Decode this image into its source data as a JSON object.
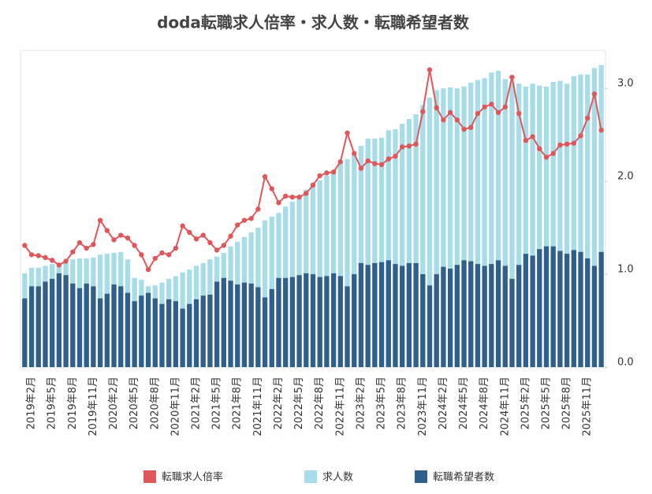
{
  "chart_data": {
    "type": "bar-line",
    "title": "doda転職求人倍率・求人数・転職希望者数",
    "categories": [
      null,
      "2019年2月",
      null,
      null,
      "2019年5月",
      null,
      null,
      "2019年8月",
      null,
      null,
      "2019年11月",
      null,
      null,
      "2020年2月",
      null,
      null,
      "2020年5月",
      null,
      null,
      "2020年8月",
      null,
      null,
      "2020年11月",
      null,
      null,
      "2021年2月",
      null,
      null,
      "2021年5月",
      null,
      null,
      "2021年8月",
      null,
      null,
      "2021年11月",
      null,
      null,
      "2022年2月",
      null,
      null,
      "2022年5月",
      null,
      null,
      "2022年8月",
      null,
      null,
      "2022年11月",
      null,
      null,
      "2023年2月",
      null,
      null,
      "2023年5月",
      null,
      null,
      "2023年8月",
      null,
      null,
      "2023年11月",
      null,
      null,
      "2024年2月",
      null,
      null,
      "2024年5月",
      null,
      null,
      "2024年8月",
      null,
      null,
      "2024年11月",
      null,
      null,
      "2025年2月",
      null,
      null,
      "2025年5月",
      null,
      null,
      "2025年8月",
      null,
      null,
      "2025年11月",
      null,
      null
    ],
    "series": [
      {
        "name": "転職求人倍率",
        "color": "#e0575b",
        "axis": "y2",
        "kind": "line",
        "values": [
          1.31,
          1.21,
          1.2,
          1.18,
          1.15,
          1.1,
          1.14,
          1.24,
          1.34,
          1.28,
          1.32,
          1.58,
          1.47,
          1.37,
          1.42,
          1.39,
          1.31,
          1.21,
          1.05,
          1.17,
          1.23,
          1.21,
          1.28,
          1.52,
          1.45,
          1.38,
          1.42,
          1.34,
          1.26,
          1.31,
          1.41,
          1.53,
          1.58,
          1.6,
          1.7,
          2.05,
          1.92,
          1.77,
          1.84,
          1.83,
          1.83,
          1.87,
          1.96,
          2.06,
          2.09,
          2.1,
          2.21,
          2.52,
          2.3,
          2.14,
          2.22,
          2.19,
          2.18,
          2.24,
          2.27,
          2.37,
          2.38,
          2.4,
          2.75,
          3.2,
          2.79,
          2.66,
          2.74,
          2.66,
          2.56,
          2.58,
          2.73,
          2.8,
          2.83,
          2.74,
          2.8,
          3.12,
          2.73,
          2.44,
          2.48,
          2.35,
          2.26,
          2.3,
          2.39,
          2.4,
          2.41,
          2.49,
          2.68,
          2.94,
          2.55
        ]
      },
      {
        "name": "求人数",
        "color": "#a6dde9",
        "kind": "bar",
        "values": [
          1.01,
          1.07,
          1.07,
          1.09,
          1.11,
          1.12,
          1.13,
          1.16,
          1.17,
          1.17,
          1.18,
          1.21,
          1.22,
          1.23,
          1.24,
          1.16,
          0.96,
          0.94,
          0.87,
          0.88,
          0.91,
          0.95,
          0.98,
          1.02,
          1.05,
          1.09,
          1.12,
          1.16,
          1.19,
          1.23,
          1.3,
          1.35,
          1.4,
          1.45,
          1.5,
          1.58,
          1.62,
          1.66,
          1.73,
          1.78,
          1.84,
          1.91,
          1.96,
          2.01,
          2.06,
          2.12,
          2.19,
          2.24,
          2.3,
          2.38,
          2.46,
          2.46,
          2.47,
          2.55,
          2.56,
          2.62,
          2.67,
          2.72,
          2.82,
          2.9,
          2.98,
          3.0,
          3.01,
          3.0,
          3.02,
          3.06,
          3.09,
          3.11,
          3.17,
          3.19,
          3.1,
          3.07,
          3.05,
          3.02,
          3.05,
          3.03,
          3.02,
          3.07,
          3.08,
          3.05,
          3.13,
          3.15,
          3.15,
          3.22,
          3.25
        ]
      },
      {
        "name": "転職希望者数",
        "color": "#2f5f8a",
        "kind": "bar",
        "values": [
          0.74,
          0.87,
          0.87,
          0.92,
          0.95,
          1.01,
          0.99,
          0.9,
          0.85,
          0.9,
          0.87,
          0.74,
          0.79,
          0.89,
          0.87,
          0.8,
          0.71,
          0.77,
          0.8,
          0.74,
          0.68,
          0.73,
          0.71,
          0.63,
          0.68,
          0.73,
          0.77,
          0.78,
          0.92,
          0.96,
          0.93,
          0.89,
          0.91,
          0.9,
          0.86,
          0.75,
          0.84,
          0.96,
          0.96,
          0.97,
          0.99,
          1.01,
          1.0,
          0.97,
          0.98,
          1.01,
          0.98,
          0.87,
          1.0,
          1.12,
          1.1,
          1.12,
          1.13,
          1.15,
          1.11,
          1.09,
          1.12,
          1.12,
          1.0,
          0.88,
          1.0,
          1.08,
          1.06,
          1.1,
          1.15,
          1.14,
          1.11,
          1.09,
          1.11,
          1.15,
          1.09,
          0.95,
          1.1,
          1.22,
          1.2,
          1.27,
          1.3,
          1.3,
          1.25,
          1.22,
          1.26,
          1.24,
          1.17,
          1.09,
          1.24
        ]
      }
    ],
    "ylim": [
      0,
      3.4
    ],
    "y2lim": [
      0,
      3.4
    ],
    "y2ticks": [
      {
        "value": 0,
        "label": "0.0"
      },
      {
        "value": 1,
        "label": "1.0"
      },
      {
        "value": 2,
        "label": "2.0"
      },
      {
        "value": 3,
        "label": "3.0"
      }
    ],
    "legend": "bottom"
  }
}
